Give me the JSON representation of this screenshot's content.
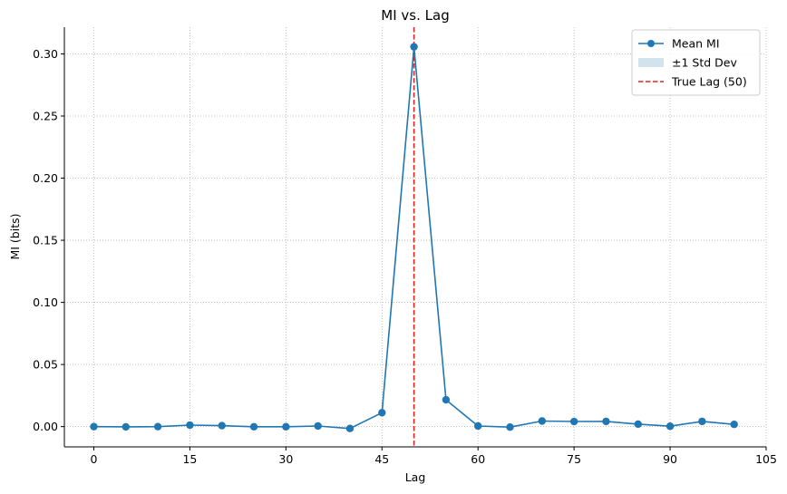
{
  "chart_data": {
    "type": "line",
    "title": "MI vs. Lag",
    "xlabel": "Lag",
    "ylabel": "MI (bits)",
    "xlim": [
      -4.6,
      105
    ],
    "ylim": [
      -0.0163,
      0.3215
    ],
    "xticks": [
      0,
      15,
      30,
      45,
      60,
      75,
      90,
      105
    ],
    "yticks": [
      0.0,
      0.05,
      0.1,
      0.15,
      0.2,
      0.25,
      0.3
    ],
    "xtick_labels": [
      "0",
      "15",
      "30",
      "45",
      "60",
      "75",
      "90",
      "105"
    ],
    "ytick_labels": [
      "0.00",
      "0.05",
      "0.10",
      "0.15",
      "0.20",
      "0.25",
      "0.30"
    ],
    "grid": true,
    "grid_style": "dotted",
    "legend_position": "top-right",
    "series": [
      {
        "name": "Mean MI",
        "color": "#1f77b4",
        "marker": "circle",
        "x": [
          0,
          5,
          10,
          15,
          20,
          25,
          30,
          35,
          40,
          45,
          50,
          55,
          60,
          65,
          70,
          75,
          80,
          85,
          90,
          95,
          100
        ],
        "y": [
          0.0,
          -0.0002,
          0.0,
          0.0012,
          0.0008,
          -0.0001,
          -0.0001,
          0.0005,
          -0.0015,
          0.0112,
          0.3057,
          0.0216,
          0.0005,
          -0.0004,
          0.0045,
          0.0041,
          0.0042,
          0.002,
          0.0003,
          0.0042,
          0.0018
        ]
      }
    ],
    "band": {
      "name": "±1 Std Dev",
      "color": "#d3e3ee"
    },
    "reference_line": {
      "name": "True Lag (50)",
      "x": 50,
      "color": "#d62728",
      "style": "dashed"
    }
  }
}
